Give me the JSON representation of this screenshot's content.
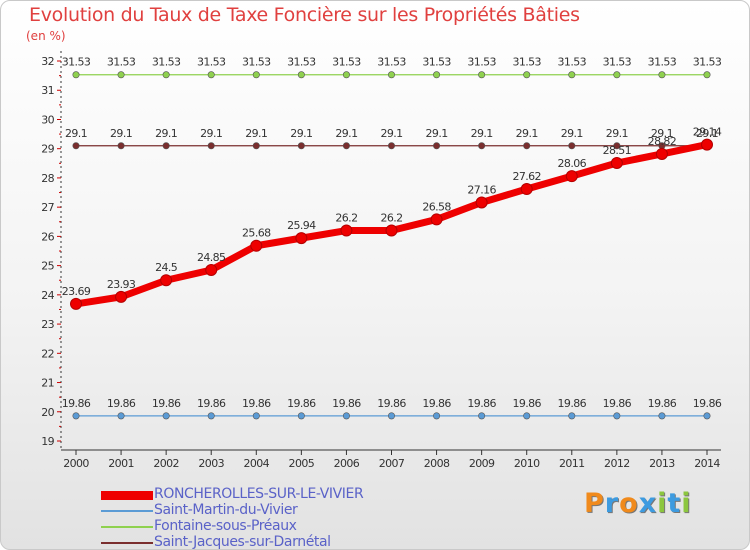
{
  "chart_data": {
    "type": "line",
    "title": "Evolution du Taux de Taxe Foncière sur les Propriétés Bâties",
    "ylabel": "(en %)",
    "xlabel": "",
    "x": [
      "2000",
      "2001",
      "2002",
      "2003",
      "2004",
      "2005",
      "2006",
      "2007",
      "2008",
      "2009",
      "2010",
      "2011",
      "2012",
      "2013",
      "2014"
    ],
    "yticks": [
      "19",
      "20",
      "21",
      "22",
      "23",
      "24",
      "25",
      "26",
      "27",
      "28",
      "29",
      "30",
      "31",
      "32"
    ],
    "ylim": [
      19,
      32
    ],
    "grid": false,
    "series": [
      {
        "name": "RONCHEROLLES-SUR-LE-VIVIER",
        "color": "#ee0000",
        "values": [
          23.69,
          23.93,
          24.5,
          24.85,
          25.68,
          25.94,
          26.2,
          26.2,
          26.58,
          27.16,
          27.62,
          28.06,
          28.51,
          28.82,
          29.14
        ],
        "labels": [
          "23.69",
          "23.93",
          "24.5",
          "24.85",
          "25.68",
          "25.94",
          "26.2",
          "26.2",
          "26.58",
          "27.16",
          "27.62",
          "28.06",
          "28.51",
          "28.82",
          "29.14"
        ]
      },
      {
        "name": "Saint-Martin-du-Vivier",
        "color": "#5b9bd5",
        "values": [
          19.86,
          19.86,
          19.86,
          19.86,
          19.86,
          19.86,
          19.86,
          19.86,
          19.86,
          19.86,
          19.86,
          19.86,
          19.86,
          19.86,
          19.86
        ],
        "labels": [
          "19.86",
          "19.86",
          "19.86",
          "19.86",
          "19.86",
          "19.86",
          "19.86",
          "19.86",
          "19.86",
          "19.86",
          "19.86",
          "19.86",
          "19.86",
          "19.86",
          "19.86"
        ]
      },
      {
        "name": "Fontaine-sous-Préaux",
        "color": "#8fd14f",
        "values": [
          31.53,
          31.53,
          31.53,
          31.53,
          31.53,
          31.53,
          31.53,
          31.53,
          31.53,
          31.53,
          31.53,
          31.53,
          31.53,
          31.53,
          31.53
        ],
        "labels": [
          "31.53",
          "31.53",
          "31.53",
          "31.53",
          "31.53",
          "31.53",
          "31.53",
          "31.53",
          "31.53",
          "31.53",
          "31.53",
          "31.53",
          "31.53",
          "31.53",
          "31.53"
        ]
      },
      {
        "name": "Saint-Jacques-sur-Darnétal",
        "color": "#7a2e2e",
        "values": [
          29.1,
          29.1,
          29.1,
          29.1,
          29.1,
          29.1,
          29.1,
          29.1,
          29.1,
          29.1,
          29.1,
          29.1,
          29.1,
          29.1,
          29.1
        ],
        "labels": [
          "29.1",
          "29.1",
          "29.1",
          "29.1",
          "29.1",
          "29.1",
          "29.1",
          "29.1",
          "29.1",
          "29.1",
          "29.1",
          "29.1",
          "29.1",
          "29.1",
          "29.1"
        ]
      }
    ],
    "legend": "bottom-left"
  },
  "logo": {
    "letters": [
      "P",
      "r",
      "o",
      "x",
      "i",
      "t",
      "i"
    ],
    "colors": [
      "#f08a1c",
      "#3d9be0",
      "#f08a1c",
      "#3d9be0",
      "#8cc63f",
      "#3d9be0",
      "#8cc63f"
    ]
  }
}
